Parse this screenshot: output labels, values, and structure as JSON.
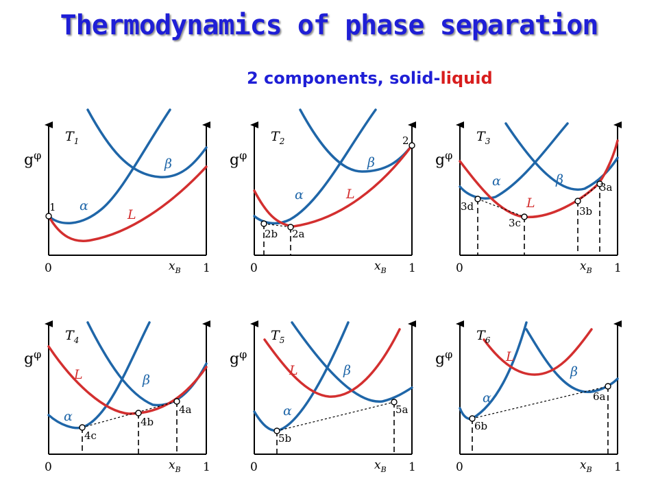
{
  "header": {
    "title": "Thermodynamics of phase separation",
    "subtitle_prefix": "2 components, solid-",
    "subtitle_liquid": "liquid"
  },
  "axes": {
    "ylabel": "g",
    "ylabel_sub": "φ",
    "xlabel": "x",
    "xlabel_sub": "B",
    "tick_min": "0",
    "tick_max": "1"
  },
  "phase_labels": {
    "alpha": "α",
    "beta": "β",
    "liquid": "L"
  },
  "panels": [
    {
      "temp": "T",
      "temp_sub": "1",
      "points": [
        "1"
      ]
    },
    {
      "temp": "T",
      "temp_sub": "2",
      "points": [
        "2",
        "2b",
        "2a"
      ]
    },
    {
      "temp": "T",
      "temp_sub": "3",
      "points": [
        "3d",
        "3c",
        "3b",
        "3a"
      ]
    },
    {
      "temp": "T",
      "temp_sub": "4",
      "points": [
        "4c",
        "4b",
        "4a"
      ]
    },
    {
      "temp": "T",
      "temp_sub": "5",
      "points": [
        "5b",
        "5a"
      ]
    },
    {
      "temp": "T",
      "temp_sub": "6",
      "points": [
        "6b",
        "6a"
      ]
    }
  ],
  "colors": {
    "title": "#1f1fd6",
    "alpha_beta_curve": "#1f66a8",
    "liquid_curve": "#d32f2f"
  }
}
